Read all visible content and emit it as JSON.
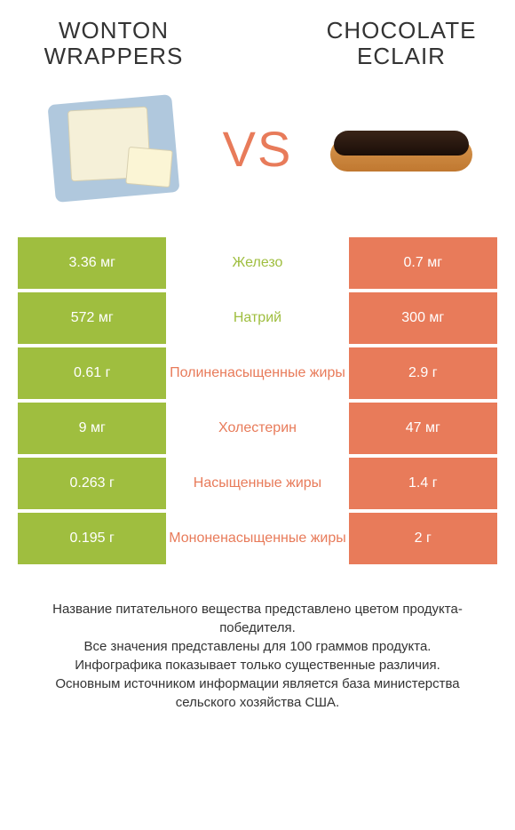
{
  "header": {
    "left_title": "WONTON WRAPPERS",
    "right_title": "CHOCOLATE ECLAIR",
    "vs": "VS"
  },
  "colors": {
    "left": "#9fbe3f",
    "right": "#e87b5a",
    "vs_text": "#e87b5a",
    "background": "#ffffff",
    "text_dark": "#333333",
    "cell_text": "#ffffff"
  },
  "typography": {
    "title_fontsize": 26,
    "vs_fontsize": 56,
    "cell_fontsize": 16,
    "footer_fontsize": 15
  },
  "rows": [
    {
      "left": "3.36 мг",
      "label": "Железо",
      "right": "0.7 мг",
      "winner": "left"
    },
    {
      "left": "572 мг",
      "label": "Натрий",
      "right": "300 мг",
      "winner": "left"
    },
    {
      "left": "0.61 г",
      "label": "Полиненасыщенные жиры",
      "right": "2.9 г",
      "winner": "right"
    },
    {
      "left": "9 мг",
      "label": "Холестерин",
      "right": "47 мг",
      "winner": "right"
    },
    {
      "left": "0.263 г",
      "label": "Насыщенные жиры",
      "right": "1.4 г",
      "winner": "right"
    },
    {
      "left": "0.195 г",
      "label": "Мононенасыщенные жиры",
      "right": "2 г",
      "winner": "right"
    }
  ],
  "footer": {
    "line1": "Название питательного вещества представлено цветом продукта-победителя.",
    "line2": "Все значения представлены для 100 граммов продукта.",
    "line3": "Инфографика показывает только существенные различия.",
    "line4": "Основным источником информации является база министерства сельского хозяйства США."
  }
}
